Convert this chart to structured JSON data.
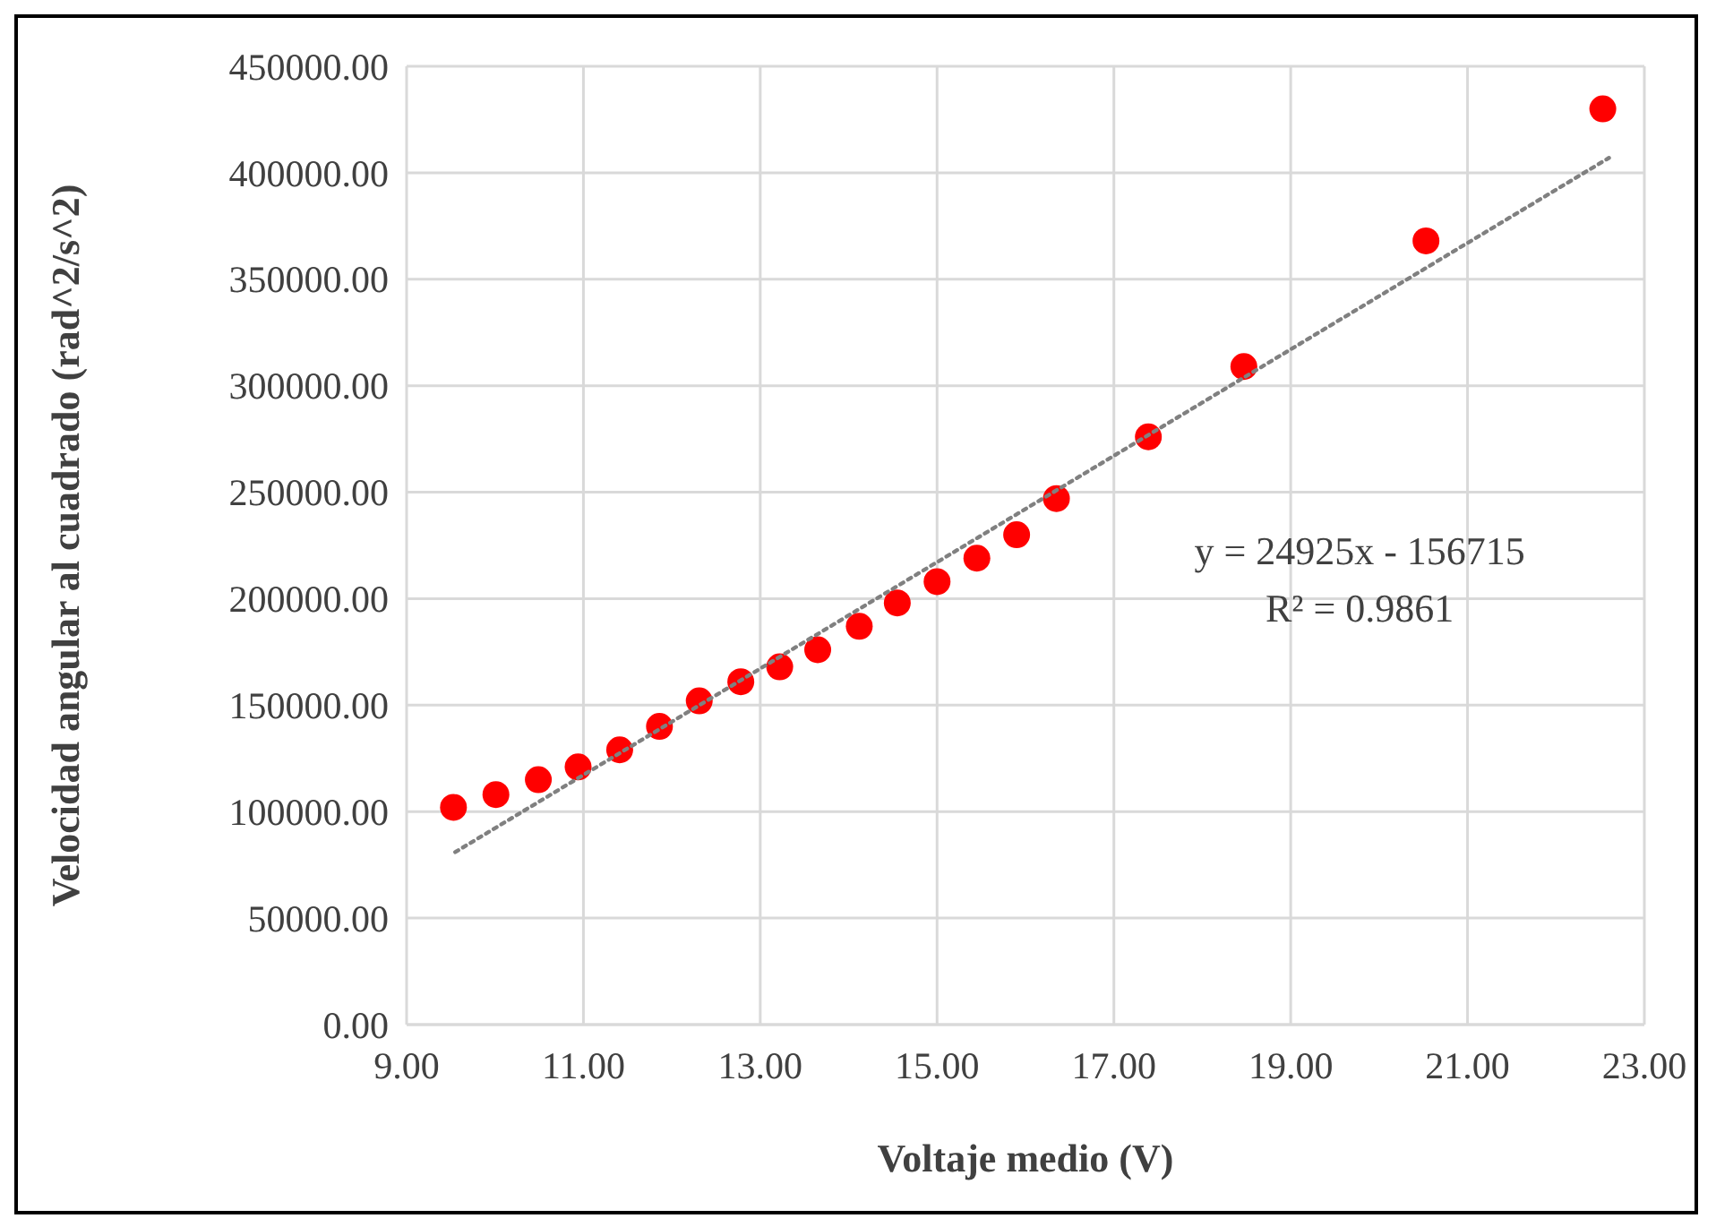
{
  "chart_data": {
    "type": "scatter",
    "xlabel": "Voltaje medio (V)",
    "ylabel": "Velocidad angular al cuadrado (rad^2/s^2)",
    "xlim": [
      9,
      23
    ],
    "ylim": [
      0,
      450000
    ],
    "xticks": [
      {
        "value": 9,
        "label": "9.00"
      },
      {
        "value": 11,
        "label": "11.00"
      },
      {
        "value": 13,
        "label": "13.00"
      },
      {
        "value": 15,
        "label": "15.00"
      },
      {
        "value": 17,
        "label": "17.00"
      },
      {
        "value": 19,
        "label": "19.00"
      },
      {
        "value": 21,
        "label": "21.00"
      },
      {
        "value": 23,
        "label": "23.00"
      }
    ],
    "yticks": [
      {
        "value": 0,
        "label": "0.00"
      },
      {
        "value": 50000,
        "label": "50000.00"
      },
      {
        "value": 100000,
        "label": "100000.00"
      },
      {
        "value": 150000,
        "label": "150000.00"
      },
      {
        "value": 200000,
        "label": "200000.00"
      },
      {
        "value": 250000,
        "label": "250000.00"
      },
      {
        "value": 300000,
        "label": "300000.00"
      },
      {
        "value": 350000,
        "label": "350000.00"
      },
      {
        "value": 400000,
        "label": "400000.00"
      },
      {
        "value": 450000,
        "label": "450000.00"
      }
    ],
    "grid": true,
    "series": [
      {
        "color": "#ff0000",
        "marker": "circle",
        "x": [
          9.53,
          10.01,
          10.49,
          10.94,
          11.41,
          11.86,
          12.31,
          12.78,
          13.22,
          13.65,
          14.12,
          14.55,
          15.0,
          15.45,
          15.9,
          16.35,
          17.39,
          18.47,
          20.53,
          22.53
        ],
        "values": [
          102000,
          108000,
          115000,
          121000,
          129000,
          140000,
          152000,
          161000,
          168000,
          176000,
          187000,
          198000,
          208000,
          219000,
          230000,
          247000,
          276000,
          309000,
          368000,
          430000
        ]
      },
      {
        "type": "line",
        "color": "#808080",
        "line_style": "dotted",
        "marker": "none",
        "x": [
          9.55,
          22.6
        ],
        "values": [
          81000,
          407000
        ]
      }
    ],
    "annotations": [
      "y = 24925x - 156715",
      "R² = 0.9861"
    ]
  }
}
